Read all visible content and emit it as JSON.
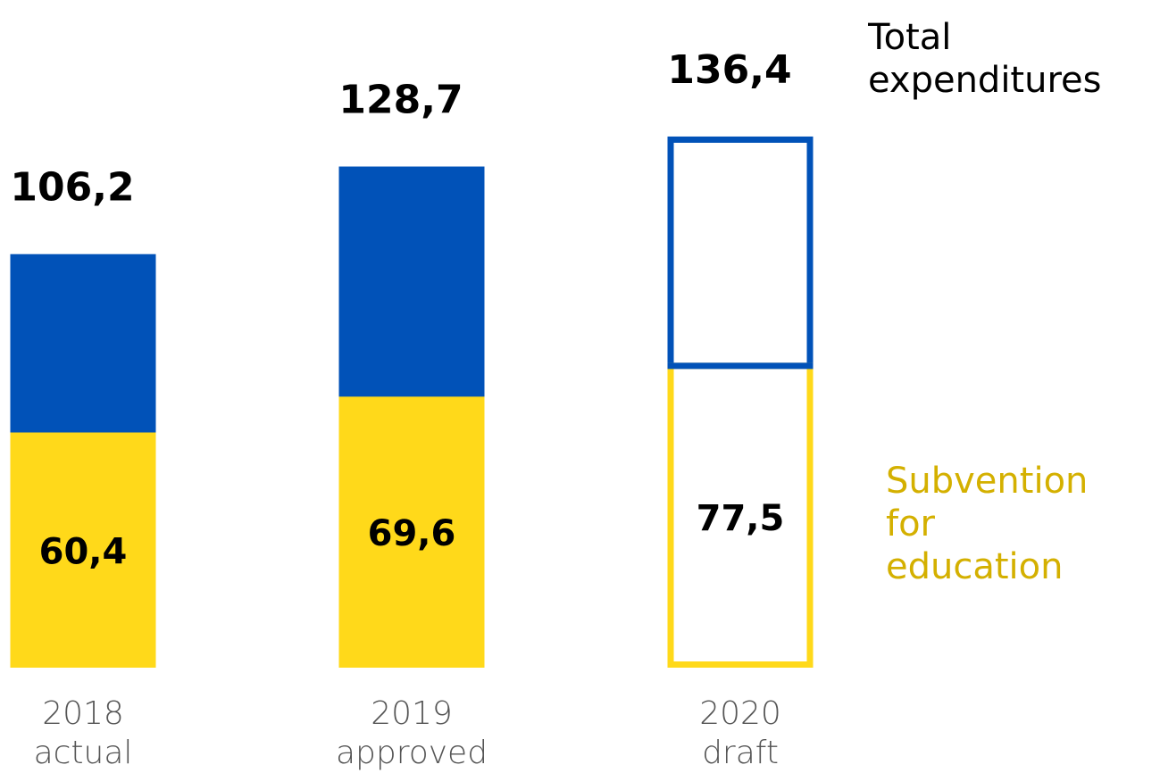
{
  "chart_data": {
    "type": "bar",
    "categories": [
      "2018 actual",
      "2019 approved",
      "2020 draft"
    ],
    "bar_styles": [
      "solid",
      "solid",
      "outline"
    ],
    "series": [
      {
        "name": "Total expenditures",
        "color": "#0152B8",
        "legend_color": "#000000",
        "values": [
          106.2,
          128.7,
          136.4
        ],
        "value_labels": [
          "106,2",
          "128,7",
          "136,4"
        ]
      },
      {
        "name": "Subvention for education",
        "color": "#FFD91A",
        "legend_color": "#D4B000",
        "values": [
          60.4,
          69.6,
          77.5
        ],
        "value_labels": [
          "60,4",
          "69,6",
          "77,5"
        ]
      }
    ],
    "ylim": [
      0,
      160
    ]
  }
}
